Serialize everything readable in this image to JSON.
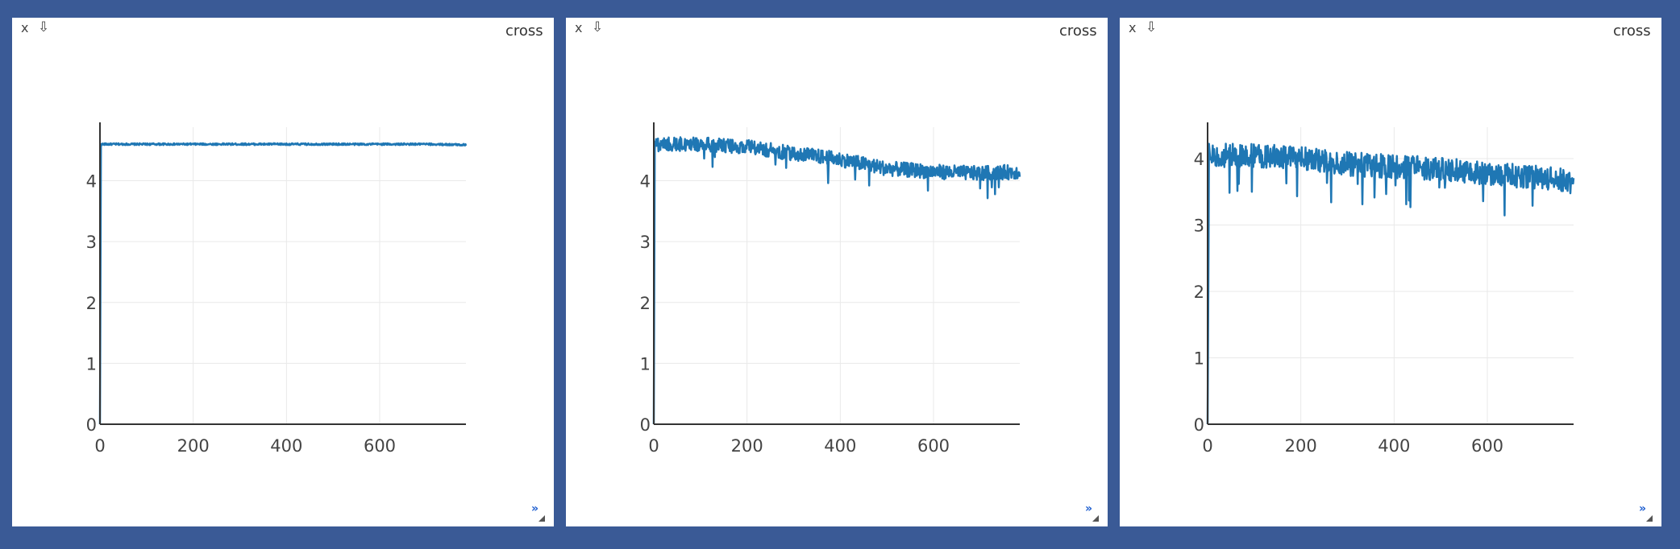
{
  "panels": [
    {
      "close_label": "x",
      "download_icon": "download-icon",
      "title": "cross"
    },
    {
      "close_label": "x",
      "download_icon": "download-icon",
      "title": "cross"
    },
    {
      "close_label": "x",
      "download_icon": "download-icon",
      "title": "cross"
    }
  ],
  "expand_label": "»",
  "colors": {
    "background": "#3a5a96",
    "line": "#1f77b4",
    "grid": "#e9e9e9",
    "axis": "#333333"
  },
  "chart_data": [
    {
      "type": "line",
      "xlim": [
        0,
        785
      ],
      "ylim": [
        0,
        4.8
      ],
      "xticks": [
        0,
        200,
        400,
        600
      ],
      "yticks": [
        0,
        1,
        2,
        3,
        4
      ],
      "grid": true,
      "series": [
        {
          "values_description_points": [
            [
              0,
              0
            ],
            [
              2,
              4.6
            ],
            [
              100,
              4.6
            ],
            [
              200,
              4.6
            ],
            [
              300,
              4.6
            ],
            [
              400,
              4.6
            ],
            [
              500,
              4.6
            ],
            [
              600,
              4.6
            ],
            [
              700,
              4.6
            ],
            [
              785,
              4.59
            ]
          ],
          "noise": 0.015
        }
      ]
    },
    {
      "type": "line",
      "xlim": [
        0,
        785
      ],
      "ylim": [
        0,
        4.8
      ],
      "xticks": [
        0,
        200,
        400,
        600
      ],
      "yticks": [
        0,
        1,
        2,
        3,
        4
      ],
      "grid": true,
      "series": [
        {
          "values_description_points": [
            [
              0,
              0
            ],
            [
              2,
              4.6
            ],
            [
              100,
              4.6
            ],
            [
              150,
              4.58
            ],
            [
              200,
              4.55
            ],
            [
              300,
              4.45
            ],
            [
              400,
              4.35
            ],
            [
              500,
              4.2
            ],
            [
              600,
              4.15
            ],
            [
              700,
              4.12
            ],
            [
              785,
              4.15
            ]
          ],
          "noise": 0.12
        }
      ]
    },
    {
      "type": "line",
      "xlim": [
        0,
        785
      ],
      "ylim": [
        0,
        4.4
      ],
      "xticks": [
        0,
        200,
        400,
        600
      ],
      "yticks": [
        0,
        1,
        2,
        3,
        4
      ],
      "grid": true,
      "series": [
        {
          "values_description_points": [
            [
              0,
              0
            ],
            [
              3,
              4.05
            ],
            [
              100,
              4.05
            ],
            [
              200,
              4.0
            ],
            [
              300,
              3.92
            ],
            [
              400,
              3.88
            ],
            [
              500,
              3.85
            ],
            [
              600,
              3.78
            ],
            [
              700,
              3.72
            ],
            [
              785,
              3.65
            ]
          ],
          "noise": 0.18
        }
      ]
    }
  ]
}
